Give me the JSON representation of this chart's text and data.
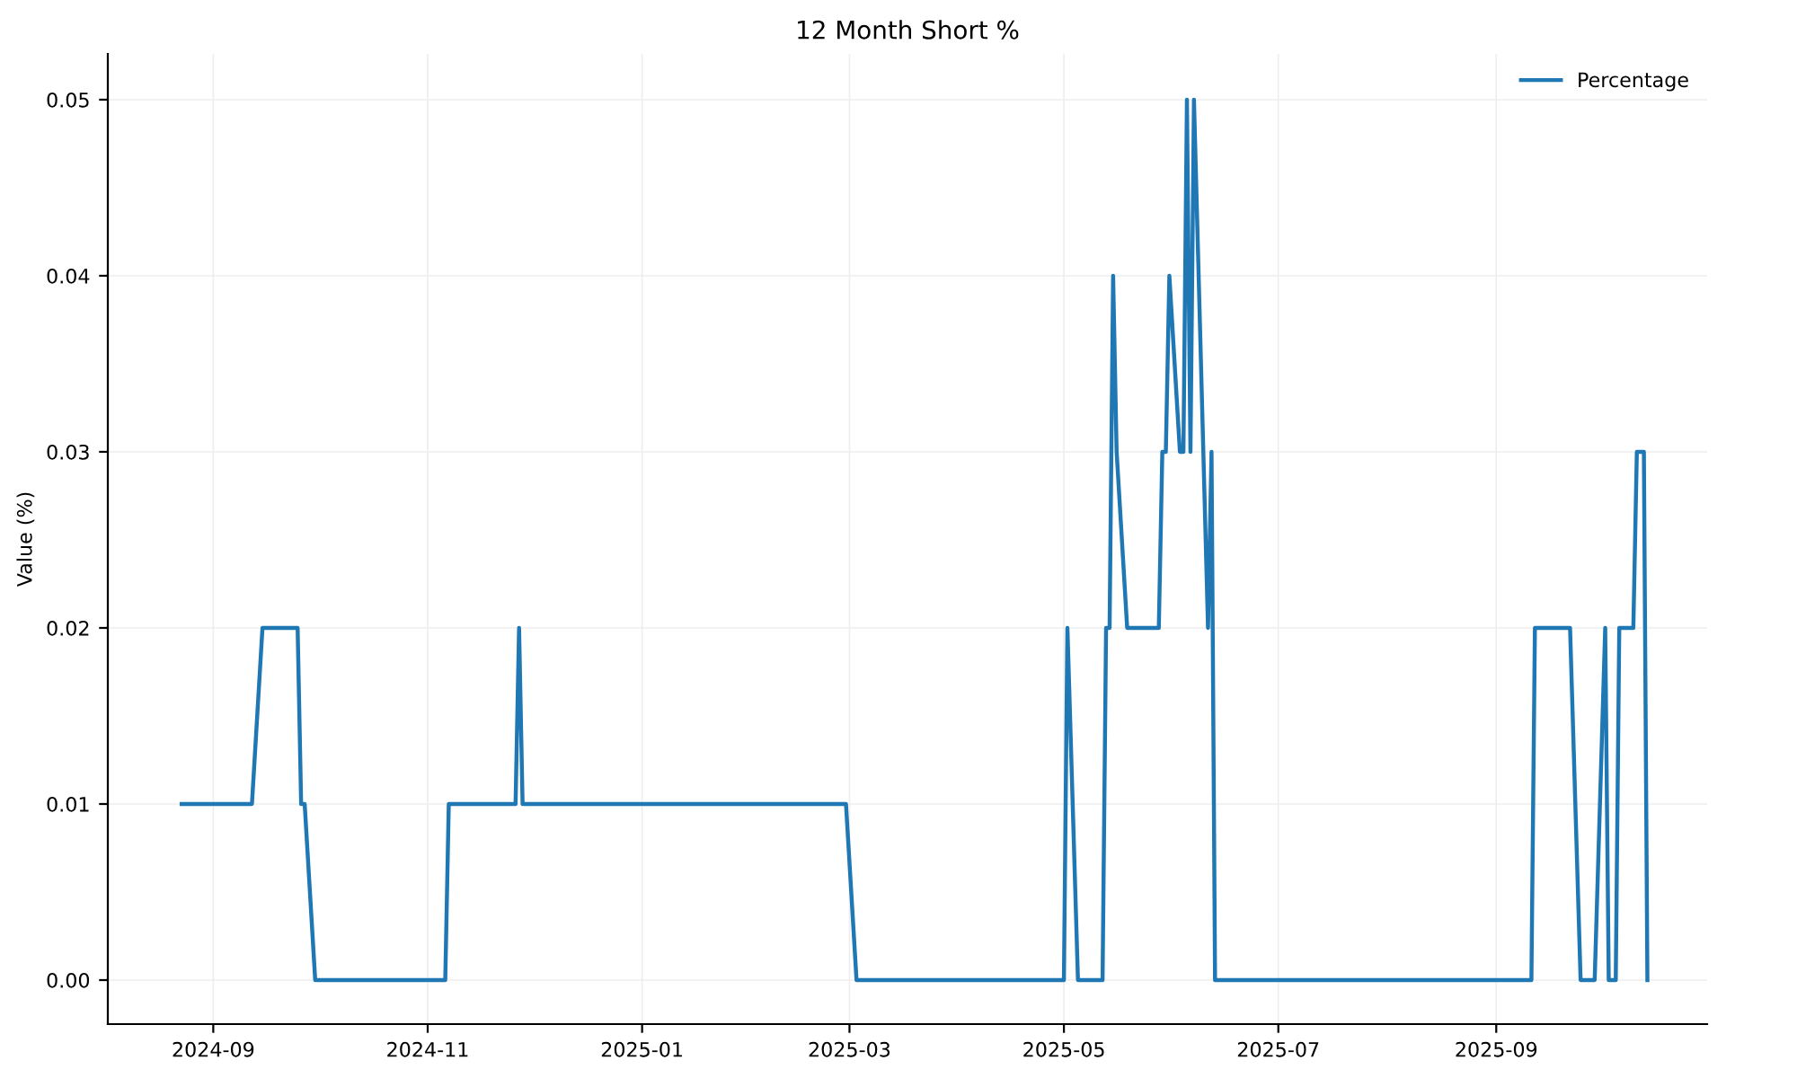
{
  "chart_data": {
    "type": "line",
    "title": "12 Month Short %",
    "ylabel": "Value (%)",
    "series": [
      {
        "name": "Percentage",
        "color": "#1f77b4",
        "x": [
          "2024-08-23",
          "2024-09-12",
          "2024-09-15",
          "2024-09-25",
          "2024-09-26",
          "2024-09-27",
          "2024-09-30",
          "2024-11-06",
          "2024-11-07",
          "2024-11-26",
          "2024-11-27",
          "2024-11-28",
          "2025-02-28",
          "2025-03-03",
          "2025-05-01",
          "2025-05-02",
          "2025-05-05",
          "2025-05-12",
          "2025-05-13",
          "2025-05-14",
          "2025-05-15",
          "2025-05-16",
          "2025-05-19",
          "2025-05-28",
          "2025-05-29",
          "2025-05-30",
          "2025-05-31",
          "2025-06-03",
          "2025-06-04",
          "2025-06-05",
          "2025-06-06",
          "2025-06-07",
          "2025-06-11",
          "2025-06-12",
          "2025-06-13",
          "2025-09-11",
          "2025-09-12",
          "2025-09-22",
          "2025-09-25",
          "2025-09-29",
          "2025-10-02",
          "2025-10-03",
          "2025-10-05",
          "2025-10-06",
          "2025-10-10",
          "2025-10-11",
          "2025-10-13",
          "2025-10-14"
        ],
        "values": [
          0.01,
          0.01,
          0.02,
          0.02,
          0.01,
          0.01,
          0,
          0,
          0.01,
          0.01,
          0.02,
          0.01,
          0.01,
          0,
          0,
          0.02,
          0,
          0,
          0.02,
          0.02,
          0.04,
          0.03,
          0.02,
          0.02,
          0.03,
          0.03,
          0.04,
          0.03,
          0.03,
          0.05,
          0.03,
          0.05,
          0.02,
          0.03,
          0,
          0,
          0.02,
          0.02,
          0,
          0,
          0.02,
          0,
          0,
          0.02,
          0.02,
          0.03,
          0.03,
          0
        ]
      }
    ],
    "xlim": [
      "2024-08-02",
      "2025-10-31"
    ],
    "xticks": [
      "2024-09",
      "2024-11",
      "2025-01",
      "2025-03",
      "2025-05",
      "2025-07",
      "2025-09"
    ],
    "ylim": [
      -0.0025,
      0.0526
    ],
    "yticks": [
      {
        "value": 0,
        "label": "0.00"
      },
      {
        "value": 0.01,
        "label": "0.01"
      },
      {
        "value": 0.02,
        "label": "0.02"
      },
      {
        "value": 0.03,
        "label": "0.03"
      },
      {
        "value": 0.04,
        "label": "0.04"
      },
      {
        "value": 0.05,
        "label": "0.05"
      }
    ],
    "grid": true,
    "legend": "top right",
    "marker": "none",
    "line_style": "solid"
  }
}
